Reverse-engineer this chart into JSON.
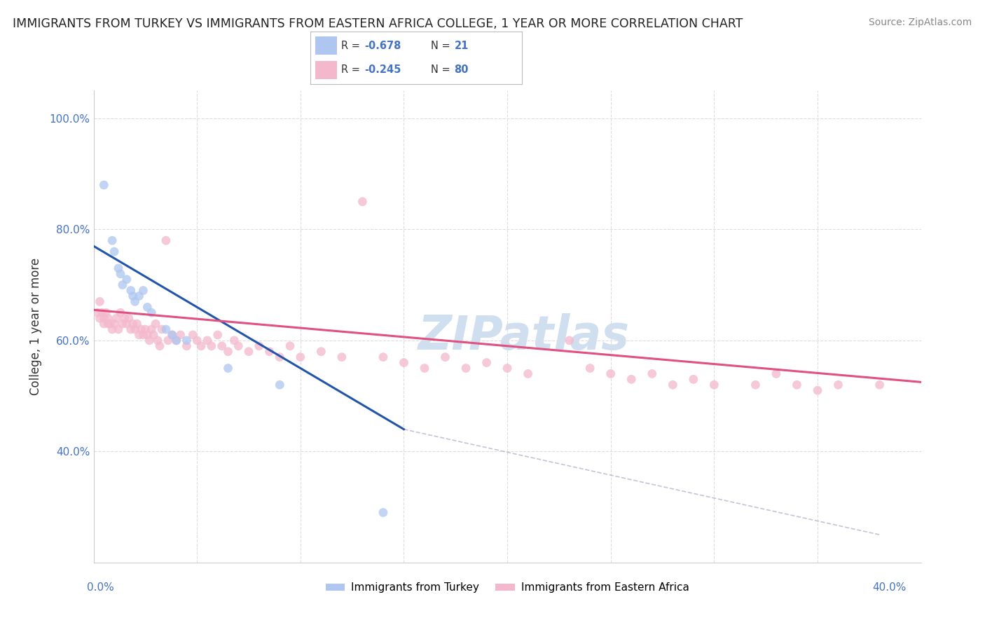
{
  "title": "IMMIGRANTS FROM TURKEY VS IMMIGRANTS FROM EASTERN AFRICA COLLEGE, 1 YEAR OR MORE CORRELATION CHART",
  "source": "Source: ZipAtlas.com",
  "ylabel": "College, 1 year or more",
  "color_turkey": "#aec6f0",
  "color_eastern": "#f4b8cc",
  "color_turkey_line": "#2255aa",
  "color_eastern_line": "#e05080",
  "color_tick": "#4472c4",
  "watermark_color": "#d0dff0",
  "xlim": [
    0.0,
    0.4
  ],
  "ylim": [
    0.2,
    1.05
  ],
  "yticks": [
    0.4,
    0.6,
    0.8,
    1.0
  ],
  "xticks": [
    0.0,
    0.05,
    0.1,
    0.15,
    0.2,
    0.25,
    0.3,
    0.35,
    0.4
  ],
  "turkey_line_x": [
    0.0,
    0.15
  ],
  "turkey_line_y": [
    0.77,
    0.44
  ],
  "eastern_line_x": [
    0.0,
    0.4
  ],
  "eastern_line_y": [
    0.655,
    0.525
  ],
  "dashed_line_x": [
    0.15,
    0.38
  ],
  "dashed_line_y": [
    0.44,
    0.25
  ],
  "turkey_points": [
    [
      0.005,
      0.88
    ],
    [
      0.009,
      0.78
    ],
    [
      0.01,
      0.76
    ],
    [
      0.012,
      0.73
    ],
    [
      0.013,
      0.72
    ],
    [
      0.014,
      0.7
    ],
    [
      0.016,
      0.71
    ],
    [
      0.018,
      0.69
    ],
    [
      0.019,
      0.68
    ],
    [
      0.02,
      0.67
    ],
    [
      0.022,
      0.68
    ],
    [
      0.024,
      0.69
    ],
    [
      0.026,
      0.66
    ],
    [
      0.028,
      0.65
    ],
    [
      0.035,
      0.62
    ],
    [
      0.038,
      0.61
    ],
    [
      0.04,
      0.6
    ],
    [
      0.045,
      0.6
    ],
    [
      0.065,
      0.55
    ],
    [
      0.09,
      0.52
    ],
    [
      0.14,
      0.29
    ]
  ],
  "eastern_points": [
    [
      0.003,
      0.64
    ],
    [
      0.004,
      0.65
    ],
    [
      0.005,
      0.63
    ],
    [
      0.006,
      0.65
    ],
    [
      0.007,
      0.64
    ],
    [
      0.008,
      0.63
    ],
    [
      0.009,
      0.62
    ],
    [
      0.01,
      0.63
    ],
    [
      0.011,
      0.64
    ],
    [
      0.012,
      0.62
    ],
    [
      0.013,
      0.65
    ],
    [
      0.014,
      0.63
    ],
    [
      0.015,
      0.64
    ],
    [
      0.016,
      0.63
    ],
    [
      0.017,
      0.64
    ],
    [
      0.018,
      0.62
    ],
    [
      0.019,
      0.63
    ],
    [
      0.02,
      0.62
    ],
    [
      0.021,
      0.63
    ],
    [
      0.022,
      0.61
    ],
    [
      0.023,
      0.62
    ],
    [
      0.024,
      0.61
    ],
    [
      0.025,
      0.62
    ],
    [
      0.026,
      0.61
    ],
    [
      0.027,
      0.6
    ],
    [
      0.028,
      0.62
    ],
    [
      0.029,
      0.61
    ],
    [
      0.03,
      0.63
    ],
    [
      0.031,
      0.6
    ],
    [
      0.032,
      0.59
    ],
    [
      0.033,
      0.62
    ],
    [
      0.035,
      0.78
    ],
    [
      0.036,
      0.6
    ],
    [
      0.038,
      0.61
    ],
    [
      0.04,
      0.6
    ],
    [
      0.042,
      0.61
    ],
    [
      0.045,
      0.59
    ],
    [
      0.048,
      0.61
    ],
    [
      0.05,
      0.6
    ],
    [
      0.052,
      0.59
    ],
    [
      0.055,
      0.6
    ],
    [
      0.057,
      0.59
    ],
    [
      0.06,
      0.61
    ],
    [
      0.062,
      0.59
    ],
    [
      0.065,
      0.58
    ],
    [
      0.068,
      0.6
    ],
    [
      0.07,
      0.59
    ],
    [
      0.075,
      0.58
    ],
    [
      0.08,
      0.59
    ],
    [
      0.085,
      0.58
    ],
    [
      0.09,
      0.57
    ],
    [
      0.095,
      0.59
    ],
    [
      0.1,
      0.57
    ],
    [
      0.11,
      0.58
    ],
    [
      0.12,
      0.57
    ],
    [
      0.13,
      0.85
    ],
    [
      0.14,
      0.57
    ],
    [
      0.15,
      0.56
    ],
    [
      0.16,
      0.55
    ],
    [
      0.17,
      0.57
    ],
    [
      0.18,
      0.55
    ],
    [
      0.19,
      0.56
    ],
    [
      0.2,
      0.55
    ],
    [
      0.21,
      0.54
    ],
    [
      0.23,
      0.6
    ],
    [
      0.24,
      0.55
    ],
    [
      0.25,
      0.54
    ],
    [
      0.26,
      0.53
    ],
    [
      0.27,
      0.54
    ],
    [
      0.28,
      0.52
    ],
    [
      0.29,
      0.53
    ],
    [
      0.3,
      0.52
    ],
    [
      0.32,
      0.52
    ],
    [
      0.33,
      0.54
    ],
    [
      0.34,
      0.52
    ],
    [
      0.35,
      0.51
    ],
    [
      0.36,
      0.52
    ],
    [
      0.38,
      0.52
    ],
    [
      0.002,
      0.65
    ],
    [
      0.003,
      0.67
    ],
    [
      0.005,
      0.64
    ],
    [
      0.007,
      0.63
    ]
  ]
}
